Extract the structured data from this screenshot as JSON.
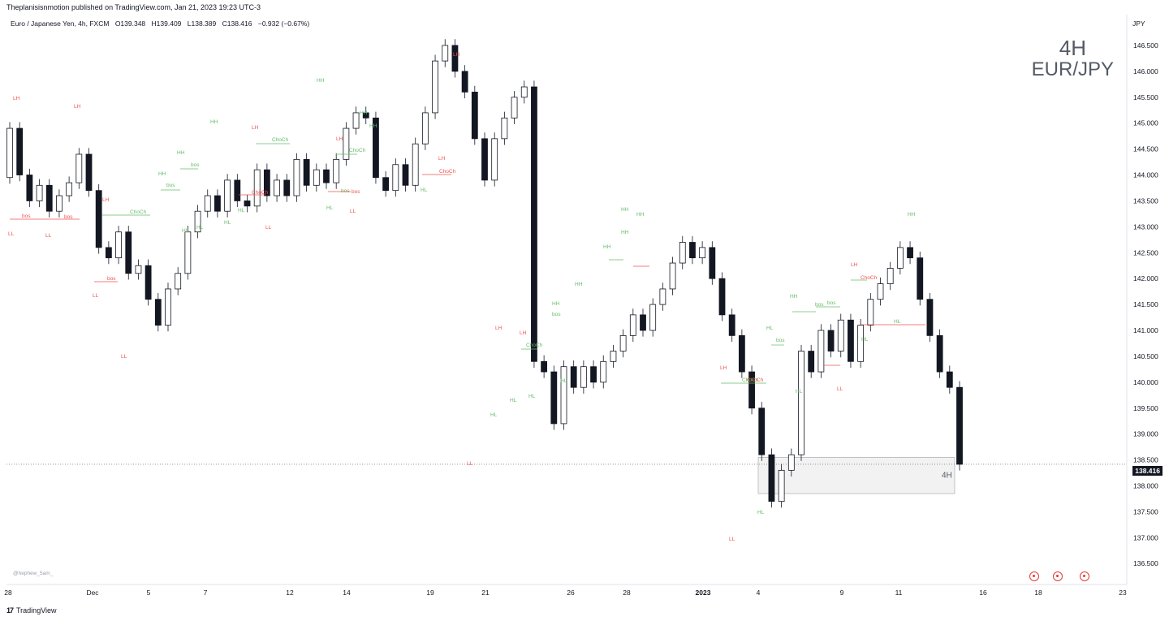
{
  "header": {
    "publisher": "Theplanisisnmotion published on TradingView.com, Jan 21, 2023 19:23 UTC-3"
  },
  "legend": {
    "symbol": "Euro / Japanese Yen, 4h, FXCM",
    "open": "O139.348",
    "high": "H139.409",
    "low": "L138.389",
    "close": "C138.416",
    "change": "−0.932 (−0.67%)"
  },
  "watermark": {
    "timeframe": "4H",
    "symbol": "EUR/JPY"
  },
  "author": "@hephew_5am_",
  "footer": {
    "brand": "TradingView",
    "logo": "tv-logo-icon"
  },
  "price_axis": {
    "currency": "JPY",
    "last_price": "138.416"
  },
  "zone_label": "4H",
  "events": [
    "event-icon",
    "event-icon",
    "event-icon"
  ],
  "colors": {
    "bull_body": "#ffffff",
    "bear_body": "#131722",
    "green_label": "#66bb6a",
    "red_label": "#ef5350",
    "zone_fill": "#f2f2f2"
  },
  "chart_data": {
    "type": "candlestick",
    "ylim": [
      136.3,
      146.75
    ],
    "y_ticks": [
      "136.500",
      "137.000",
      "137.500",
      "138.000",
      "138.500",
      "139.000",
      "139.500",
      "140.000",
      "140.500",
      "141.000",
      "141.500",
      "142.000",
      "142.500",
      "143.000",
      "143.500",
      "144.000",
      "144.500",
      "145.000",
      "145.500",
      "146.000",
      "146.500"
    ],
    "x_ticks": [
      "28",
      "Dec",
      "5",
      "7",
      "12",
      "14",
      "19",
      "21",
      "26",
      "28",
      "2023",
      "4",
      "9",
      "11",
      "16",
      "18",
      "23"
    ],
    "candles_approx": [
      [
        143.95,
        144.9
      ],
      [
        144.9,
        144.0
      ],
      [
        144.0,
        143.5
      ],
      [
        143.5,
        143.8
      ],
      [
        143.8,
        143.3
      ],
      [
        143.3,
        143.6
      ],
      [
        143.6,
        143.85
      ],
      [
        143.85,
        144.4
      ],
      [
        144.4,
        143.7
      ],
      [
        143.7,
        142.6
      ],
      [
        142.6,
        142.4
      ],
      [
        142.4,
        142.9
      ],
      [
        142.9,
        142.1
      ],
      [
        142.1,
        142.25
      ],
      [
        142.25,
        141.6
      ],
      [
        141.6,
        141.1
      ],
      [
        141.1,
        141.8
      ],
      [
        141.8,
        142.1
      ],
      [
        142.1,
        142.9
      ],
      [
        142.9,
        143.3
      ],
      [
        143.3,
        143.6
      ],
      [
        143.6,
        143.3
      ],
      [
        143.3,
        143.9
      ],
      [
        143.9,
        143.5
      ],
      [
        143.5,
        143.4
      ],
      [
        143.4,
        144.1
      ],
      [
        144.1,
        143.6
      ],
      [
        143.6,
        143.9
      ],
      [
        143.9,
        143.6
      ],
      [
        143.6,
        144.3
      ],
      [
        144.3,
        143.8
      ],
      [
        143.8,
        144.1
      ],
      [
        144.1,
        143.85
      ],
      [
        143.85,
        144.3
      ],
      [
        144.3,
        144.9
      ],
      [
        144.9,
        145.2
      ],
      [
        145.2,
        145.1
      ],
      [
        145.1,
        143.95
      ],
      [
        143.95,
        143.7
      ],
      [
        143.7,
        144.2
      ],
      [
        144.2,
        143.8
      ],
      [
        143.8,
        144.6
      ],
      [
        144.6,
        145.2
      ],
      [
        145.2,
        146.2
      ],
      [
        146.2,
        146.5
      ],
      [
        146.5,
        146.0
      ],
      [
        146.0,
        145.6
      ],
      [
        145.6,
        144.7
      ],
      [
        144.7,
        143.9
      ],
      [
        143.9,
        144.7
      ],
      [
        144.7,
        145.1
      ],
      [
        145.1,
        145.5
      ],
      [
        145.5,
        145.7
      ],
      [
        145.7,
        140.4
      ],
      [
        140.4,
        140.2
      ],
      [
        140.2,
        139.2
      ],
      [
        139.2,
        140.3
      ],
      [
        140.3,
        139.9
      ],
      [
        139.9,
        140.3
      ],
      [
        140.3,
        140.0
      ],
      [
        140.0,
        140.4
      ],
      [
        140.4,
        140.6
      ],
      [
        140.6,
        140.9
      ],
      [
        140.9,
        141.3
      ],
      [
        141.3,
        141.0
      ],
      [
        141.0,
        141.5
      ],
      [
        141.5,
        141.8
      ],
      [
        141.8,
        142.3
      ],
      [
        142.3,
        142.7
      ],
      [
        142.7,
        142.4
      ],
      [
        142.4,
        142.6
      ],
      [
        142.6,
        142.0
      ],
      [
        142.0,
        141.3
      ],
      [
        141.3,
        140.9
      ],
      [
        140.9,
        140.2
      ],
      [
        140.2,
        139.5
      ],
      [
        139.5,
        138.6
      ],
      [
        138.6,
        137.7
      ],
      [
        137.7,
        138.3
      ],
      [
        138.3,
        138.6
      ],
      [
        138.6,
        140.6
      ],
      [
        140.6,
        140.2
      ],
      [
        140.2,
        141.0
      ],
      [
        141.0,
        140.6
      ],
      [
        140.6,
        141.2
      ],
      [
        141.2,
        140.4
      ],
      [
        140.4,
        141.1
      ],
      [
        141.1,
        141.6
      ],
      [
        141.6,
        141.9
      ],
      [
        141.9,
        142.2
      ],
      [
        142.2,
        142.6
      ],
      [
        142.6,
        142.4
      ],
      [
        142.4,
        141.6
      ],
      [
        141.6,
        140.9
      ],
      [
        140.9,
        140.2
      ],
      [
        140.2,
        139.9
      ],
      [
        139.9,
        138.416
      ]
    ]
  },
  "structure_labels": [
    {
      "text": "LH",
      "color": "red"
    },
    {
      "text": "LH",
      "color": "red"
    },
    {
      "text": "LL",
      "color": "red"
    },
    {
      "text": "LL",
      "color": "red"
    },
    {
      "text": "bos",
      "color": "red"
    },
    {
      "text": "bos",
      "color": "red"
    },
    {
      "text": "LH",
      "color": "red"
    },
    {
      "text": "ChoCh",
      "color": "green"
    },
    {
      "text": "bos",
      "color": "red"
    },
    {
      "text": "LL",
      "color": "red"
    },
    {
      "text": "LL",
      "color": "red"
    },
    {
      "text": "HH",
      "color": "green"
    },
    {
      "text": "HH",
      "color": "green"
    },
    {
      "text": "bos",
      "color": "green"
    },
    {
      "text": "HH",
      "color": "green"
    },
    {
      "text": "bos",
      "color": "green"
    },
    {
      "text": "HL",
      "color": "green"
    },
    {
      "text": "HL",
      "color": "green"
    },
    {
      "text": "HL",
      "color": "green"
    },
    {
      "text": "HL",
      "color": "green"
    },
    {
      "text": "LH",
      "color": "red"
    },
    {
      "text": "ChoCh",
      "color": "green"
    },
    {
      "text": "ChoCh",
      "color": "red"
    },
    {
      "text": "LL",
      "color": "red"
    },
    {
      "text": "HH",
      "color": "green"
    },
    {
      "text": "LH",
      "color": "red"
    },
    {
      "text": "HH",
      "color": "green"
    },
    {
      "text": "ChoCh",
      "color": "green"
    },
    {
      "text": "HH",
      "color": "green"
    },
    {
      "text": "bos",
      "color": "green"
    },
    {
      "text": "HL",
      "color": "green"
    },
    {
      "text": "LH",
      "color": "red"
    },
    {
      "text": "bos",
      "color": "red"
    },
    {
      "text": "LL",
      "color": "red"
    },
    {
      "text": "LH",
      "color": "red"
    },
    {
      "text": "ChoCh",
      "color": "red"
    },
    {
      "text": "HL",
      "color": "green"
    },
    {
      "text": "LH",
      "color": "red"
    },
    {
      "text": "LL",
      "color": "red"
    },
    {
      "text": "HL",
      "color": "green"
    },
    {
      "text": "HL",
      "color": "green"
    },
    {
      "text": "HL",
      "color": "green"
    },
    {
      "text": "HL",
      "color": "green"
    },
    {
      "text": "LH",
      "color": "red"
    },
    {
      "text": "ChoCh",
      "color": "green"
    },
    {
      "text": "HH",
      "color": "green"
    },
    {
      "text": "bos",
      "color": "green"
    },
    {
      "text": "HH",
      "color": "green"
    },
    {
      "text": "HH",
      "color": "green"
    },
    {
      "text": "HH",
      "color": "green"
    },
    {
      "text": "HH",
      "color": "green"
    },
    {
      "text": "HH",
      "color": "green"
    },
    {
      "text": "ChoCh",
      "color": "green"
    },
    {
      "text": "bos",
      "color": "green"
    },
    {
      "text": "HL",
      "color": "green"
    },
    {
      "text": "LH",
      "color": "red"
    },
    {
      "text": "ChoCh",
      "color": "red"
    },
    {
      "text": "LL",
      "color": "red"
    },
    {
      "text": "LL",
      "color": "red"
    },
    {
      "text": "HL",
      "color": "green"
    },
    {
      "text": "HL",
      "color": "green"
    },
    {
      "text": "HL",
      "color": "green"
    },
    {
      "text": "LH",
      "color": "red"
    },
    {
      "text": "ChoCh",
      "color": "red"
    },
    {
      "text": "HH",
      "color": "green"
    },
    {
      "text": "bos",
      "color": "green"
    },
    {
      "text": "bos",
      "color": "green"
    },
    {
      "text": "HL",
      "color": "green"
    },
    {
      "text": "HH",
      "color": "green"
    }
  ]
}
